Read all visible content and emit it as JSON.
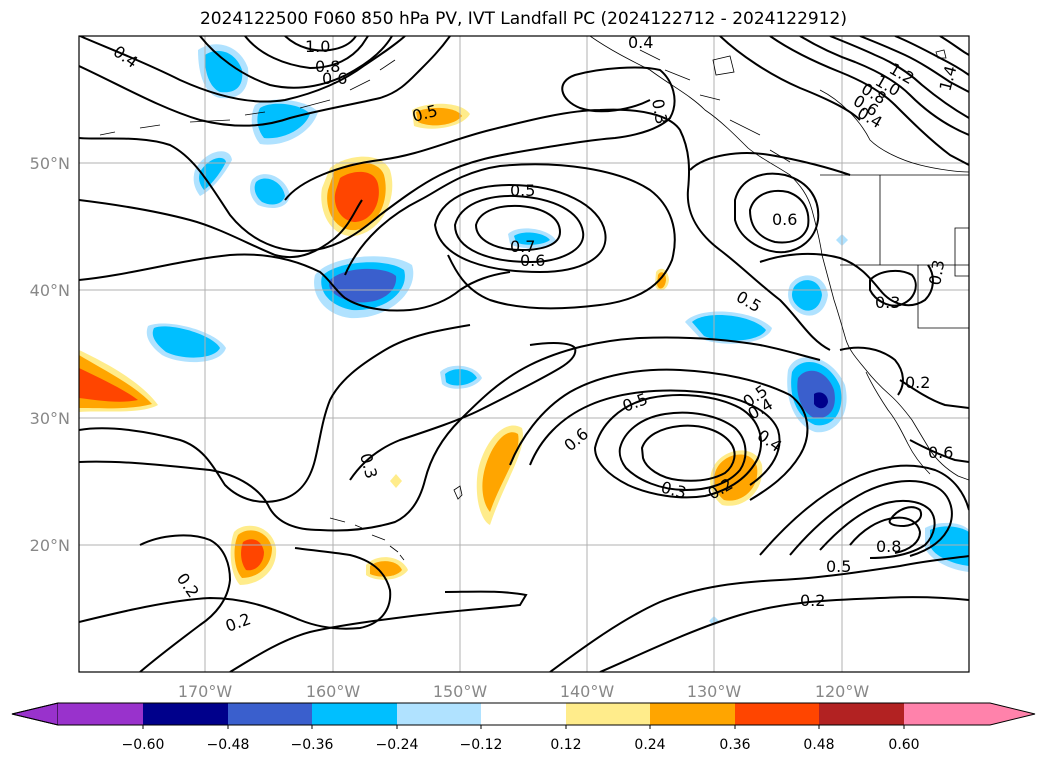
{
  "title": "2024122500 F060 850 hPa PV, IVT Landfall PC (2024122712 - 2024122912)",
  "lat_labels": [
    "50°N",
    "40°N",
    "30°N",
    "20°N"
  ],
  "lon_labels": [
    "170°W",
    "160°W",
    "150°W",
    "140°W",
    "130°W",
    "120°W"
  ],
  "contour_labels": [
    "0.4",
    "1.0",
    "0.8",
    "0.6",
    "0.5",
    "0.5",
    "0.7",
    "0.6",
    "0.6",
    "0.5",
    "0.3",
    "0.3",
    "0.5",
    "0.4",
    "0.4",
    "0.6",
    "0.5",
    "0.3",
    "0.2",
    "0.2",
    "0.2",
    "0.8",
    "0.5",
    "0.2",
    "1.2",
    "1.0",
    "0.8",
    "0.6",
    "0.4",
    "1.4",
    "0.6",
    "0.3",
    "0.4",
    "0.3",
    "0.2"
  ],
  "colorbar": {
    "ticks": [
      "−0.60",
      "−0.48",
      "−0.36",
      "−0.24",
      "−0.12",
      "0.12",
      "0.24",
      "0.36",
      "0.48",
      "0.60"
    ],
    "colors": [
      "#9932cc",
      "#00008b",
      "#3a5fcd",
      "#00bfff",
      "#b0e2ff",
      "#ffffff",
      "#ffec8b",
      "#ffa500",
      "#ff4500",
      "#b22222",
      "#ff82ab"
    ]
  }
}
